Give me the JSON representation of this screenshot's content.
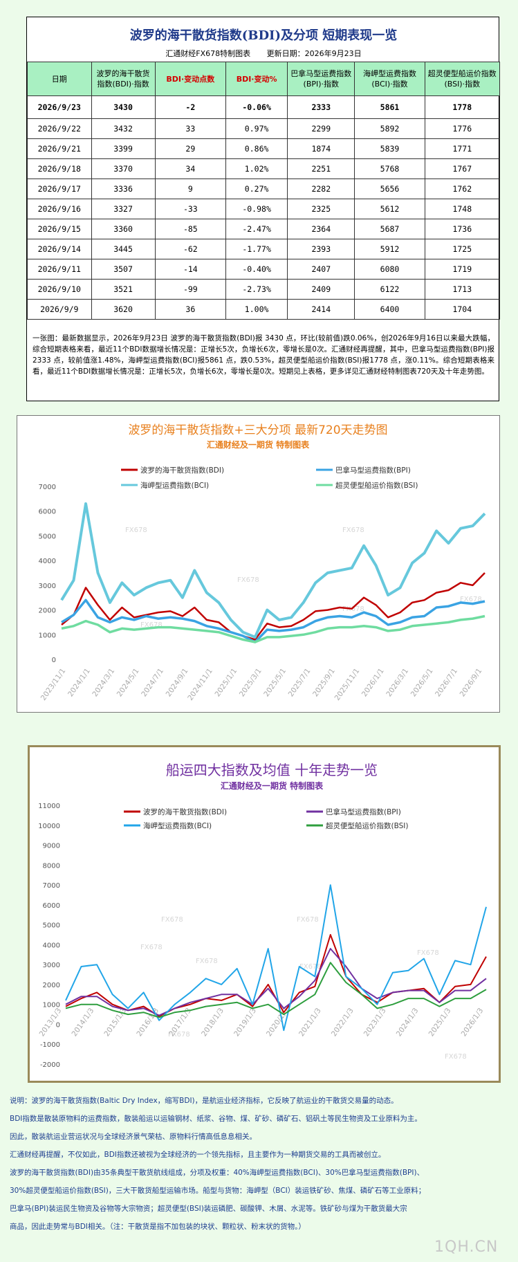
{
  "table": {
    "title": "波罗的海干散货指数(BDI)及分项 短期表现一览",
    "credit": "汇通财经FX678特制图表",
    "updated": "更新日期：2026年9月23日",
    "headers": [
      "日期",
      "波罗的海干散货指数(BDI)·指数",
      "BDI·变动点数",
      "BDI·变动%",
      "巴拿马型运费指数(BPI)·指数",
      "海岬型运费指数(BCI)·指数",
      "超灵便型船运价指数(BSI)·指数"
    ],
    "rows": [
      [
        "2026/9/23",
        "3430",
        "-2",
        "-0.06%",
        "2333",
        "5861",
        "1778"
      ],
      [
        "2026/9/22",
        "3432",
        "33",
        "0.97%",
        "2299",
        "5892",
        "1776"
      ],
      [
        "2026/9/21",
        "3399",
        "29",
        "0.86%",
        "1874",
        "5839",
        "1771"
      ],
      [
        "2026/9/18",
        "3370",
        "34",
        "1.02%",
        "2251",
        "5768",
        "1767"
      ],
      [
        "2026/9/17",
        "3336",
        "9",
        "0.27%",
        "2282",
        "5656",
        "1762"
      ],
      [
        "2026/9/16",
        "3327",
        "-33",
        "-0.98%",
        "2325",
        "5612",
        "1748"
      ],
      [
        "2026/9/15",
        "3360",
        "-85",
        "-2.47%",
        "2364",
        "5687",
        "1736"
      ],
      [
        "2026/9/14",
        "3445",
        "-62",
        "-1.77%",
        "2393",
        "5912",
        "1725"
      ],
      [
        "2026/9/11",
        "3507",
        "-14",
        "-0.40%",
        "2407",
        "6080",
        "1719"
      ],
      [
        "2026/9/10",
        "3521",
        "-99",
        "-2.73%",
        "2409",
        "6122",
        "1713"
      ],
      [
        "2026/9/9",
        "3620",
        "36",
        "1.00%",
        "2414",
        "6400",
        "1704"
      ]
    ],
    "note": "一张图：最新数据显示，2026年9月23日 波罗的海干散货指数(BDI)报 3430 点，环比(较前值)跌0.06%，创2026年9月16日以来最大跌幅，综合短期表格来看，最近11个BDI数据增长情况是：正增长5次，负增长6次，零增长是0次。汇通财经再提醒，其中，巴拿马型运费指数(BPI)报2333 点，较前值涨1.48%，海岬型运费指数(BCI)报5861 点，跌0.53%，超灵便型船运价指数(BSI)报1778 点，涨0.11%。综合短期表格来看，最近11个BDI数据增长情况是：正增长5次，负增长6次，零增长是0次。短期见上表格，更多详见汇通财经特制图表720天及十年走势图。"
  },
  "chart_data": [
    {
      "type": "line",
      "title": "波罗的海干散货指数+三大分项 最新720天走势图",
      "subtitle": "汇通财经及一期货 特制图表",
      "watermark": "FX678",
      "ylim": [
        0,
        7000
      ],
      "yticks": [
        "0",
        "1000",
        "2000",
        "3000",
        "4000",
        "5000",
        "6000",
        "7000"
      ],
      "x_tick_labels": [
        "2023/11/1",
        "2024/1/1",
        "2024/3/1",
        "2024/5/1",
        "2024/7/1",
        "2024/9/1",
        "2024/11/1",
        "2025/1/1",
        "2025/3/1",
        "2025/5/1",
        "2025/7/1",
        "2025/9/1",
        "2025/11/1",
        "2026/1/1",
        "2026/3/1",
        "2026/5/1",
        "2026/7/1",
        "2026/9/1"
      ],
      "x_months": [
        "2023-10",
        "2023-11",
        "2023-12",
        "2024-01",
        "2024-02",
        "2024-03",
        "2024-04",
        "2024-05",
        "2024-06",
        "2024-07",
        "2024-08",
        "2024-09",
        "2024-10",
        "2024-11",
        "2024-12",
        "2025-01",
        "2025-02",
        "2025-03",
        "2025-04",
        "2025-05",
        "2025-06",
        "2025-07",
        "2025-08",
        "2025-09",
        "2025-10",
        "2025-11",
        "2025-12",
        "2026-01",
        "2026-02",
        "2026-03",
        "2026-04",
        "2026-05",
        "2026-06",
        "2026-07",
        "2026-08",
        "2026-09"
      ],
      "series": [
        {
          "name": "波罗的海干散货指数(BDI)",
          "color": "#c00000",
          "values": [
            1400,
            1800,
            2900,
            2200,
            1600,
            2100,
            1700,
            1800,
            1900,
            1950,
            1750,
            2100,
            1600,
            1500,
            1100,
            950,
            800,
            1450,
            1300,
            1350,
            1600,
            1950,
            2000,
            2100,
            2050,
            2500,
            2200,
            1700,
            1900,
            2300,
            2400,
            2700,
            2800,
            3100,
            3000,
            3500
          ]
        },
        {
          "name": "巴拿马型运费指数(BPI)",
          "color": "#3aa3e3",
          "values": [
            1500,
            1800,
            2400,
            1700,
            1500,
            1700,
            1600,
            1750,
            1650,
            1700,
            1650,
            1550,
            1350,
            1250,
            1100,
            950,
            700,
            1200,
            1150,
            1200,
            1300,
            1550,
            1700,
            1750,
            1700,
            1900,
            1750,
            1400,
            1500,
            1700,
            1750,
            2100,
            2150,
            2300,
            2250,
            2350
          ]
        },
        {
          "name": "海岬型运费指数(BCI)",
          "color": "#66c8dc",
          "values": [
            2400,
            3200,
            6300,
            3500,
            2300,
            3100,
            2600,
            2900,
            3100,
            3200,
            2500,
            3600,
            2700,
            2300,
            1600,
            1100,
            900,
            2000,
            1600,
            1700,
            2300,
            3100,
            3500,
            3600,
            3700,
            4600,
            3800,
            2600,
            2900,
            3900,
            4300,
            5200,
            4700,
            5300,
            5400,
            5900
          ]
        },
        {
          "name": "超灵便型船运价指数(BSI)",
          "color": "#6fdca0",
          "values": [
            1250,
            1350,
            1550,
            1400,
            1100,
            1250,
            1200,
            1250,
            1300,
            1300,
            1250,
            1200,
            1150,
            1100,
            950,
            800,
            700,
            900,
            900,
            950,
            1000,
            1100,
            1250,
            1300,
            1300,
            1350,
            1300,
            1150,
            1200,
            1350,
            1400,
            1450,
            1500,
            1600,
            1650,
            1750
          ]
        }
      ]
    },
    {
      "type": "line",
      "title": "船运四大指数及均值 十年走势一览",
      "subtitle": "汇通财经及一期货 特制图表",
      "watermark": "FX678",
      "ylim": [
        -2000,
        11000
      ],
      "yticks": [
        "-2000",
        "-1000",
        "0",
        "1000",
        "2000",
        "3000",
        "4000",
        "5000",
        "6000",
        "7000",
        "8000",
        "9000",
        "10000",
        "11000"
      ],
      "x_tick_labels": [
        "2013/1/3",
        "2014/1/3",
        "2015/1/3",
        "2016/1/3",
        "2017/1/3",
        "2018/1/3",
        "2019/1/3",
        "2020/1/3",
        "2021/1/3",
        "2022/1/3",
        "2023/1/3",
        "2024/1/3",
        "2025/1/3",
        "2026/1/3"
      ],
      "x_quarters": [
        "2013Q1",
        "2013Q3",
        "2014Q1",
        "2014Q3",
        "2015Q1",
        "2015Q3",
        "2016Q1",
        "2016Q3",
        "2017Q1",
        "2017Q3",
        "2018Q1",
        "2018Q3",
        "2019Q1",
        "2019Q3",
        "2020Q1",
        "2020Q3",
        "2021Q1",
        "2021Q3",
        "2022Q1",
        "2022Q3",
        "2023Q1",
        "2023Q3",
        "2024Q1",
        "2024Q3",
        "2025Q1",
        "2025Q3",
        "2026Q1",
        "2026Q3"
      ],
      "series": [
        {
          "name": "波罗的海干散货指数(BDI)",
          "color": "#c00000",
          "values": [
            900,
            1300,
            1600,
            1000,
            700,
            900,
            400,
            800,
            1000,
            1300,
            1200,
            1500,
            900,
            2000,
            600,
            1600,
            1900,
            4500,
            2400,
            1500,
            1100,
            1600,
            1700,
            1800,
            1100,
            1900,
            2000,
            3400
          ]
        },
        {
          "name": "巴拿马型运费指数(BPI)",
          "color": "#7030a0",
          "values": [
            1000,
            1400,
            1400,
            900,
            700,
            800,
            450,
            800,
            1100,
            1300,
            1500,
            1500,
            1000,
            1800,
            800,
            1400,
            2200,
            3800,
            2900,
            1800,
            1300,
            1600,
            1700,
            1700,
            1100,
            1700,
            1700,
            2300
          ]
        },
        {
          "name": "海岬型运费指数(BCI)",
          "color": "#21a5e8",
          "values": [
            1200,
            2900,
            3000,
            1500,
            800,
            1600,
            200,
            1000,
            1600,
            2300,
            2000,
            2800,
            1000,
            3800,
            -300,
            2900,
            2400,
            7000,
            2400,
            1800,
            1000,
            2600,
            2700,
            3300,
            1500,
            3200,
            3000,
            5900
          ]
        },
        {
          "name": "超灵便型船运价指数(BSI)",
          "color": "#2e9e3e",
          "values": [
            800,
            1000,
            1000,
            700,
            500,
            600,
            350,
            600,
            700,
            900,
            1000,
            1100,
            800,
            1000,
            500,
            1000,
            1500,
            3100,
            2100,
            1500,
            800,
            1000,
            1300,
            1300,
            900,
            1300,
            1300,
            1750
          ]
        }
      ]
    }
  ],
  "bottom_notes": [
    "说明：波罗的海干散货指数(Baltic Dry Index，缩写BDI)，是航运业经济指标，它反映了航运业的干散货交易量的动态。",
    "BDI指数是散装原物料的运费指数，散装船运以运输钢材、纸浆、谷物、煤、矿砂、磷矿石、铝矾土等民生物资及工业原料为主。",
    "因此，散装航运业营运状况与全球经济景气荣枯、原物料行情高低息息相关。",
    "汇通财经再提醒，不仅如此，BDI指数还被视为全球经济的一个领先指标，且主要作为一种期货交易的工具而被创立。",
    "波罗的海干散货指数(BDI)由35条典型干散货航线组成，分项及权重：40%海岬型运费指数(BCI)、30%巴拿马型运费指数(BPI)、",
    "30%超灵便型船运价指数(BSI)，三大干散货船型运输市场。船型与货物：海岬型（BCI）装运铁矿砂、焦煤、磷矿石等工业原料；",
    "巴拿马(BPI)装运民生物资及谷物等大宗物资；超灵便型(BSI)装运磷肥、碳酸钾、木屑、水泥等。铁矿砂与煤为干散货最大宗",
    "商品，因此走势常与BDI相关。（注：干散货是指不加包装的块状、颗粒状、粉末状的货物。）"
  ],
  "brand": "1QH.CN"
}
